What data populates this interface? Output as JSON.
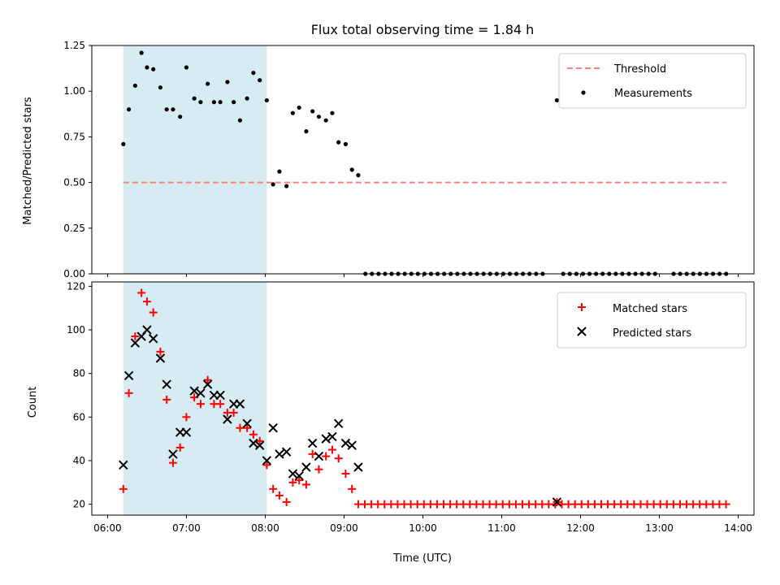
{
  "chart_data": [
    {
      "type": "scatter",
      "title": "Flux total observing time = 1.84 h",
      "xlabel": "",
      "ylabel": "Matched/Predicted stars",
      "xlim_hours": [
        5.8,
        14.2
      ],
      "ylim": [
        0,
        1.25
      ],
      "yticks": [
        0,
        0.25,
        0.5,
        0.75,
        1.0,
        1.25
      ],
      "ytick_labels": [
        "0.00",
        "0.25",
        "0.50",
        "0.75",
        "1.00",
        "1.25"
      ],
      "shaded_span_hours": [
        6.2,
        8.02
      ],
      "shaded_color": "#add8e6",
      "legend_position": "upper-right",
      "threshold": {
        "name": "Threshold",
        "y": 0.5,
        "x_range_hours": [
          6.2,
          13.85
        ],
        "color": "#ff7f7f"
      },
      "measurements": {
        "name": "Measurements",
        "color": "#000000",
        "points": [
          [
            6.2,
            0.71
          ],
          [
            6.27,
            0.9
          ],
          [
            6.35,
            1.03
          ],
          [
            6.43,
            1.21
          ],
          [
            6.5,
            1.13
          ],
          [
            6.58,
            1.12
          ],
          [
            6.67,
            1.02
          ],
          [
            6.75,
            0.9
          ],
          [
            6.83,
            0.9
          ],
          [
            6.92,
            0.86
          ],
          [
            7.0,
            1.13
          ],
          [
            7.1,
            0.96
          ],
          [
            7.18,
            0.94
          ],
          [
            7.27,
            1.04
          ],
          [
            7.35,
            0.94
          ],
          [
            7.43,
            0.94
          ],
          [
            7.52,
            1.05
          ],
          [
            7.6,
            0.94
          ],
          [
            7.68,
            0.84
          ],
          [
            7.77,
            0.96
          ],
          [
            7.85,
            1.1
          ],
          [
            7.93,
            1.06
          ],
          [
            8.02,
            0.95
          ],
          [
            8.1,
            0.49
          ],
          [
            8.18,
            0.56
          ],
          [
            8.27,
            0.48
          ],
          [
            8.35,
            0.88
          ],
          [
            8.43,
            0.91
          ],
          [
            8.52,
            0.78
          ],
          [
            8.6,
            0.89
          ],
          [
            8.68,
            0.86
          ],
          [
            8.77,
            0.84
          ],
          [
            8.85,
            0.88
          ],
          [
            8.93,
            0.72
          ],
          [
            9.02,
            0.71
          ],
          [
            9.1,
            0.57
          ],
          [
            9.18,
            0.54
          ],
          [
            11.7,
            0.95
          ]
        ],
        "zero_points_hours": {
          "start": 9.27,
          "step": 0.0833,
          "segments": [
            [
              9.27,
              11.6
            ],
            [
              11.78,
              13.0
            ],
            [
              13.18,
              13.85
            ]
          ]
        }
      }
    },
    {
      "type": "scatter",
      "title": "",
      "xlabel": "Time (UTC)",
      "ylabel": "Count",
      "xlim_hours": [
        5.8,
        14.2
      ],
      "ylim": [
        15,
        122
      ],
      "yticks": [
        20,
        40,
        60,
        80,
        100,
        120
      ],
      "ytick_labels": [
        "20",
        "40",
        "60",
        "80",
        "100",
        "120"
      ],
      "xticks_hours": [
        6,
        7,
        8,
        9,
        10,
        11,
        12,
        13,
        14
      ],
      "xtick_labels": [
        "06:00",
        "07:00",
        "08:00",
        "09:00",
        "10:00",
        "11:00",
        "12:00",
        "13:00",
        "14:00"
      ],
      "shaded_span_hours": [
        6.2,
        8.02
      ],
      "legend_position": "upper-right",
      "series": [
        {
          "name": "Matched stars",
          "marker": "plus",
          "color": "#ff0000",
          "points": [
            [
              6.2,
              27
            ],
            [
              6.27,
              71
            ],
            [
              6.35,
              97
            ],
            [
              6.43,
              117
            ],
            [
              6.5,
              113
            ],
            [
              6.58,
              108
            ],
            [
              6.67,
              90
            ],
            [
              6.75,
              68
            ],
            [
              6.83,
              39
            ],
            [
              6.92,
              46
            ],
            [
              7.0,
              60
            ],
            [
              7.1,
              69
            ],
            [
              7.18,
              66
            ],
            [
              7.27,
              77
            ],
            [
              7.35,
              66
            ],
            [
              7.43,
              66
            ],
            [
              7.52,
              62
            ],
            [
              7.6,
              62
            ],
            [
              7.68,
              55
            ],
            [
              7.77,
              55
            ],
            [
              7.85,
              52
            ],
            [
              7.93,
              49
            ],
            [
              8.02,
              38
            ],
            [
              8.1,
              27
            ],
            [
              8.18,
              24
            ],
            [
              8.27,
              21
            ],
            [
              8.35,
              30
            ],
            [
              8.43,
              31
            ],
            [
              8.52,
              29
            ],
            [
              8.6,
              43
            ],
            [
              8.68,
              36
            ],
            [
              8.77,
              42
            ],
            [
              8.85,
              45
            ],
            [
              8.93,
              41
            ],
            [
              9.02,
              34
            ],
            [
              9.1,
              27
            ],
            [
              11.7,
              21
            ]
          ],
          "baseline": {
            "y": 20,
            "start": 9.18,
            "step": 0.0833,
            "end": 13.85
          }
        },
        {
          "name": "Predicted stars",
          "marker": "x",
          "color": "#000000",
          "points": [
            [
              6.2,
              38
            ],
            [
              6.27,
              79
            ],
            [
              6.35,
              94
            ],
            [
              6.43,
              97
            ],
            [
              6.5,
              100
            ],
            [
              6.58,
              96
            ],
            [
              6.67,
              87
            ],
            [
              6.75,
              75
            ],
            [
              6.83,
              43
            ],
            [
              6.92,
              53
            ],
            [
              7.0,
              53
            ],
            [
              7.1,
              72
            ],
            [
              7.18,
              71
            ],
            [
              7.27,
              75
            ],
            [
              7.35,
              70
            ],
            [
              7.43,
              70
            ],
            [
              7.52,
              59
            ],
            [
              7.6,
              66
            ],
            [
              7.68,
              66
            ],
            [
              7.77,
              57
            ],
            [
              7.85,
              48
            ],
            [
              7.93,
              47
            ],
            [
              8.02,
              40
            ],
            [
              8.1,
              55
            ],
            [
              8.18,
              43
            ],
            [
              8.27,
              44
            ],
            [
              8.35,
              34
            ],
            [
              8.43,
              33
            ],
            [
              8.52,
              37
            ],
            [
              8.6,
              48
            ],
            [
              8.68,
              42
            ],
            [
              8.77,
              50
            ],
            [
              8.85,
              51
            ],
            [
              8.93,
              57
            ],
            [
              9.02,
              48
            ],
            [
              9.1,
              47
            ],
            [
              9.18,
              37
            ],
            [
              11.7,
              21
            ]
          ]
        }
      ]
    }
  ]
}
